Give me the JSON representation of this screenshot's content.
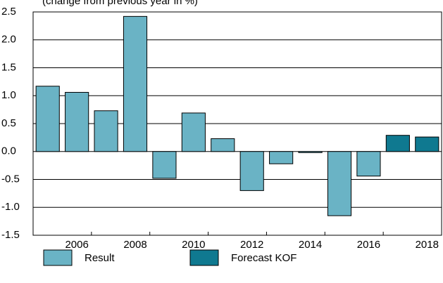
{
  "chart_data": {
    "type": "bar",
    "subtitle": "(change from previous year in %)",
    "categories": [
      null,
      "2006",
      null,
      "2008",
      null,
      "2010",
      null,
      "2012",
      null,
      "2014",
      null,
      "2016",
      null,
      "2018"
    ],
    "series": [
      {
        "name": "Result",
        "color": "#6ab3c5",
        "values": [
          1.17,
          1.06,
          0.73,
          2.42,
          -0.48,
          0.69,
          0.23,
          -0.7,
          -0.22,
          -0.02,
          -1.15,
          -0.44,
          null,
          null
        ]
      },
      {
        "name": "Forecast KOF",
        "color": "#0f7990",
        "values": [
          null,
          null,
          null,
          null,
          null,
          null,
          null,
          null,
          null,
          null,
          null,
          null,
          0.29,
          0.26
        ]
      }
    ],
    "ylim": [
      -1.5,
      2.5
    ],
    "yticks": [
      -1.5,
      {
        "value": -1,
        "label": "-1.0"
      },
      -0.5,
      {
        "value": 0,
        "label": "0.0"
      },
      0.5,
      {
        "value": 1,
        "label": "1.0"
      },
      1.5,
      {
        "value": 2,
        "label": "2.0"
      },
      2.5
    ],
    "grid": true
  }
}
